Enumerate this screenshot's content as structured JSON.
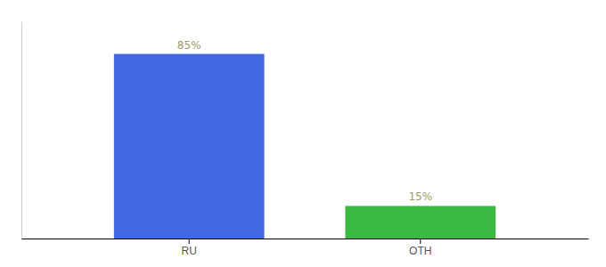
{
  "chart_data": {
    "type": "bar",
    "categories": [
      "RU",
      "OTH"
    ],
    "values": [
      85,
      15
    ],
    "value_labels": [
      "85%",
      "15%"
    ],
    "colors": [
      "#4169e1",
      "#3cb943"
    ],
    "ylim": [
      0,
      100
    ],
    "grid": false,
    "data_labels": true,
    "tick_labels": "x"
  }
}
